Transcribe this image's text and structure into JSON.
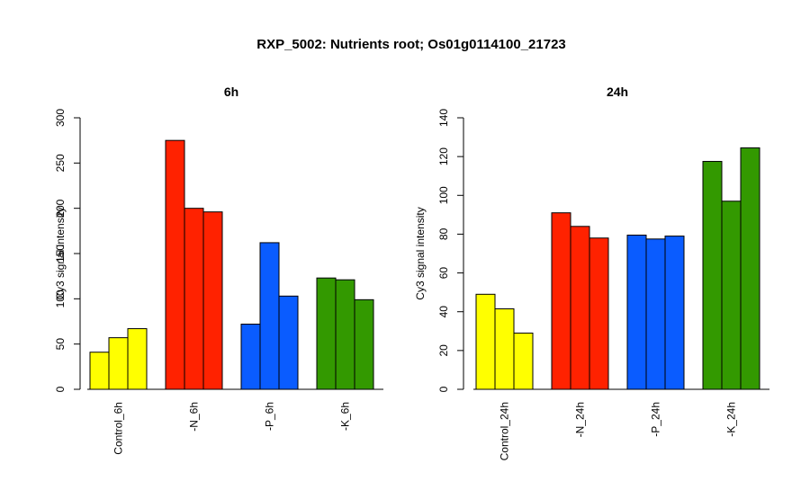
{
  "main_title": "RXP_5002: Nutrients root; Os01g0114100_21723",
  "colors": {
    "control": "#FFFF00",
    "N": "#FF2200",
    "P": "#0A5CFF",
    "K": "#339900"
  },
  "chart_data": [
    {
      "type": "bar",
      "title": "6h",
      "ylabel": "Cy3 signal intensity",
      "xlabel": "",
      "ylim": [
        0,
        300
      ],
      "yticks": [
        0,
        50,
        100,
        150,
        200,
        250,
        300
      ],
      "grid": false,
      "groups": [
        {
          "label": "Control_6h",
          "color_key": "control",
          "values": [
            41,
            57,
            67
          ]
        },
        {
          "label": "-N_6h",
          "color_key": "N",
          "values": [
            275,
            200,
            196
          ]
        },
        {
          "label": "-P_6h",
          "color_key": "P",
          "values": [
            72,
            162,
            103
          ]
        },
        {
          "label": "-K_6h",
          "color_key": "K",
          "values": [
            123,
            121,
            99
          ]
        }
      ]
    },
    {
      "type": "bar",
      "title": "24h",
      "ylabel": "Cy3 signal intensity",
      "xlabel": "",
      "ylim": [
        0,
        140
      ],
      "yticks": [
        0,
        20,
        40,
        60,
        80,
        100,
        120,
        140
      ],
      "grid": false,
      "groups": [
        {
          "label": "Control_24h",
          "color_key": "control",
          "values": [
            49,
            41.5,
            29
          ]
        },
        {
          "label": "-N_24h",
          "color_key": "N",
          "values": [
            91,
            84,
            78
          ]
        },
        {
          "label": "-P_24h",
          "color_key": "P",
          "values": [
            79.5,
            77.5,
            79
          ]
        },
        {
          "label": "-K_24h",
          "color_key": "K",
          "values": [
            117.5,
            97,
            124.5
          ]
        }
      ]
    }
  ]
}
